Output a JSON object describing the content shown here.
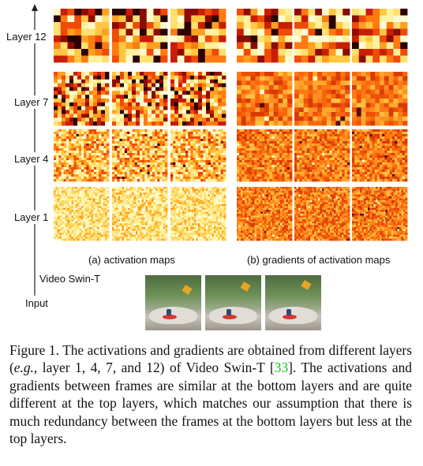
{
  "figure": {
    "layer_labels": [
      "Layer 12",
      "Layer 7",
      "Layer 4",
      "Layer 1"
    ],
    "panel_a": "(a) activation maps",
    "panel_b": "(b) gradients of activation maps",
    "model_label": "Video Swin-T",
    "input_label": "Input"
  },
  "caption": {
    "prefix": "Figure 1.",
    "part1": " The activations and gradients are obtained from different layers (",
    "eg": "e.g.",
    "part2": ", layer 1, 4, 7, and 12) of Video Swin-T [",
    "cite": "33",
    "part3": "]. The activations and gradients between frames are similar at the bottom layers and are quite different at the top layers, which matches our assumption that there is much redundancy between the frames at the bottom layers but less at the top layers."
  },
  "colors": {
    "citation": "#1ec11e"
  }
}
